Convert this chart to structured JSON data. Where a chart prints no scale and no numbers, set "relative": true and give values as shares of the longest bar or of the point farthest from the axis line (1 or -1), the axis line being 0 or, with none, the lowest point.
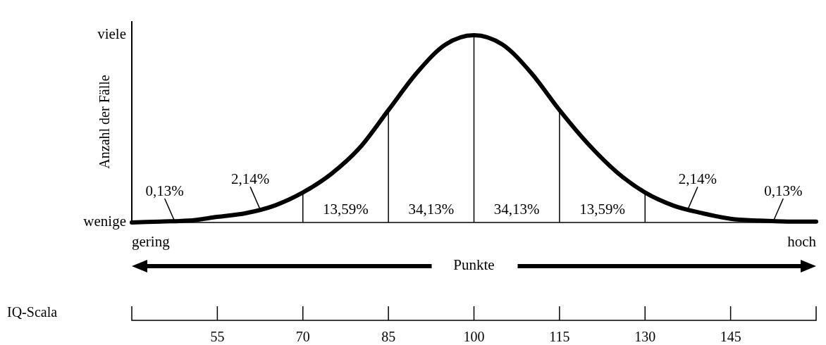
{
  "chart_data": {
    "type": "line",
    "relative": true,
    "xlabel": "Punkte",
    "ylabel": "Anzahl der Fälle",
    "x": [
      40,
      45,
      50,
      55,
      60,
      65,
      70,
      75,
      80,
      85,
      90,
      95,
      100,
      105,
      110,
      115,
      120,
      125,
      130,
      135,
      140,
      145,
      150,
      155,
      160
    ],
    "series": [
      {
        "color": "#000000",
        "values": [
          0,
          0.005,
          0.01,
          0.03,
          0.05,
          0.09,
          0.16,
          0.26,
          0.4,
          0.6,
          0.8,
          0.95,
          1,
          0.95,
          0.8,
          0.6,
          0.42,
          0.27,
          0.16,
          0.09,
          0.05,
          0.02,
          0.01,
          0.005,
          0.005
        ]
      }
    ],
    "xlim": [
      40,
      160
    ],
    "xticks": [
      55,
      70,
      85,
      100,
      115,
      130,
      145
    ],
    "ref_lines": [
      {
        "axis": "x",
        "value": 70,
        "color": "#000000"
      },
      {
        "axis": "x",
        "value": 85,
        "color": "#000000"
      },
      {
        "axis": "x",
        "value": 100,
        "color": "#000000"
      },
      {
        "axis": "x",
        "value": 115,
        "color": "#000000"
      },
      {
        "axis": "x",
        "value": 130,
        "color": "#000000"
      }
    ],
    "annotations": [
      "0,13%",
      "2,14%",
      "13,59%",
      "34,13%",
      "34,13%",
      "13,59%",
      "2,14%",
      "0,13%",
      "viele",
      "wenige",
      "gering",
      "hoch",
      "IQ-Scala"
    ]
  }
}
